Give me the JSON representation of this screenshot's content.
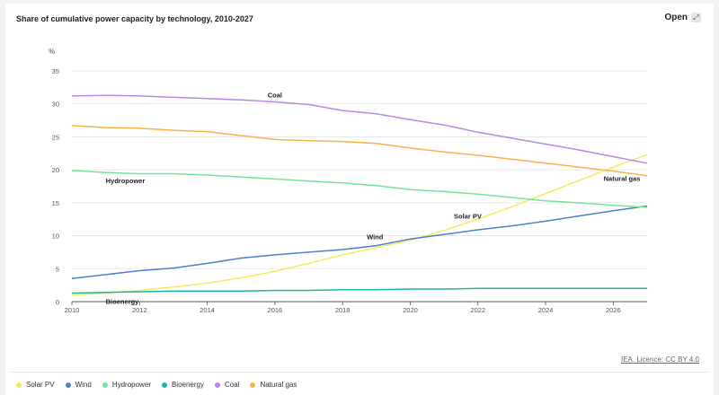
{
  "header": {
    "title": "Share of cumulative power capacity by technology, 2010-2027",
    "open_label": "Open",
    "open_icon": "expand-arrows-icon"
  },
  "source": {
    "licence_text": "IEA. Licence: CC BY 4.0"
  },
  "chart_data": {
    "type": "line",
    "title": "Share of cumulative power capacity by technology, 2010-2027",
    "ylabel": "%",
    "xlabel": "",
    "xlim": [
      2010,
      2027
    ],
    "ylim": [
      0,
      35
    ],
    "x_ticks": [
      2010,
      2012,
      2014,
      2016,
      2018,
      2020,
      2022,
      2024,
      2026
    ],
    "y_ticks": [
      0,
      5,
      10,
      15,
      20,
      25,
      30,
      35
    ],
    "grid": "horizontal",
    "legend_position": "bottom",
    "x": [
      2010,
      2011,
      2012,
      2013,
      2014,
      2015,
      2016,
      2017,
      2018,
      2019,
      2020,
      2021,
      2022,
      2023,
      2024,
      2025,
      2026,
      2027
    ],
    "series": [
      {
        "name": "Solar PV",
        "color": "#f5ea5a",
        "label": "Solar PV",
        "values": [
          1.0,
          1.3,
          1.7,
          2.2,
          2.8,
          3.6,
          4.6,
          5.8,
          7.1,
          8.2,
          9.3,
          10.8,
          12.5,
          14.4,
          16.4,
          18.4,
          20.4,
          22.3
        ]
      },
      {
        "name": "Wind",
        "color": "#4a7fd1",
        "label": "Wind",
        "values": [
          3.5,
          4.1,
          4.7,
          5.1,
          5.8,
          6.6,
          7.1,
          7.5,
          7.9,
          8.5,
          9.5,
          10.2,
          10.9,
          11.5,
          12.2,
          13.0,
          13.8,
          14.5
        ]
      },
      {
        "name": "Hydropower",
        "color": "#74e39a",
        "label": "Hydropower",
        "values": [
          19.9,
          19.6,
          19.4,
          19.4,
          19.2,
          18.9,
          18.6,
          18.3,
          18.0,
          17.6,
          17.0,
          16.7,
          16.3,
          15.8,
          15.3,
          15.0,
          14.6,
          14.3
        ]
      },
      {
        "name": "Bioenergy",
        "color": "#1fb5a0",
        "label": "Bioenergy",
        "values": [
          1.3,
          1.4,
          1.5,
          1.6,
          1.6,
          1.6,
          1.7,
          1.7,
          1.8,
          1.8,
          1.9,
          1.9,
          2.0,
          2.0,
          2.0,
          2.0,
          2.0,
          2.0
        ]
      },
      {
        "name": "Coal",
        "color": "#b48ae6",
        "label": "Coal",
        "values": [
          31.2,
          31.3,
          31.2,
          31.0,
          30.8,
          30.6,
          30.3,
          29.9,
          29.0,
          28.5,
          27.6,
          26.8,
          25.7,
          24.8,
          23.9,
          23.0,
          22.0,
          21.0
        ]
      },
      {
        "name": "Natural gas",
        "color": "#f6b24a",
        "label": "Natural gas",
        "values": [
          26.7,
          26.4,
          26.3,
          26.0,
          25.8,
          25.2,
          24.6,
          24.4,
          24.3,
          24.0,
          23.3,
          22.7,
          22.2,
          21.6,
          21.0,
          20.4,
          19.8,
          19.1
        ]
      }
    ]
  }
}
